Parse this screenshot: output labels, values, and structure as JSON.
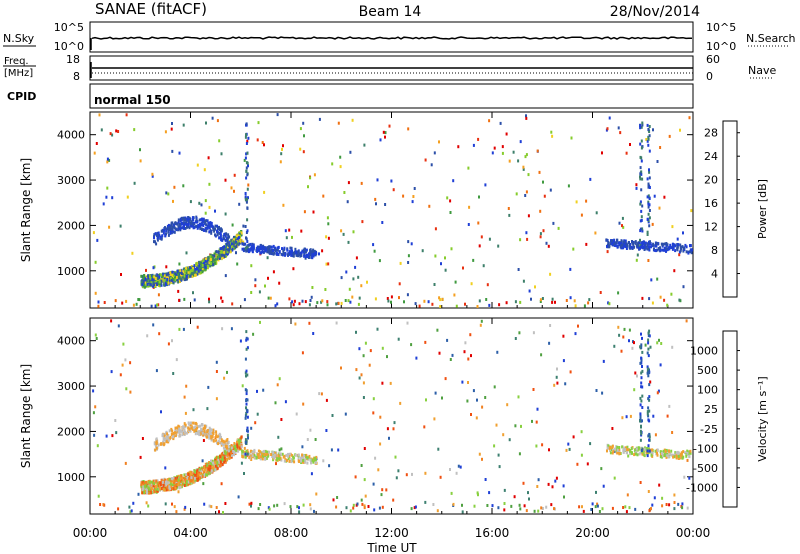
{
  "header": {
    "station": "SANAE (fitACF)",
    "beam": "Beam 14",
    "date": "28/Nov/2014"
  },
  "strip": {
    "nsky_label": "N.Sky",
    "nsky_ticks": [
      "10^5",
      "10^0"
    ],
    "nsearch_label": "N.Search",
    "nsearch_ticks": [
      "10^5",
      "10^0"
    ],
    "freq_label_1": "Freq.",
    "freq_label_2": "[MHz]",
    "freq_ticks": [
      "18",
      "8"
    ],
    "nave_label": "Nave",
    "nave_ticks": [
      "60",
      "0"
    ],
    "cpid_label": "CPID",
    "cpid_value": "normal 150"
  },
  "colors": {
    "power_scale": [
      "#1f3fd6",
      "#2c4fa8",
      "#3d7f6a",
      "#3f9a3f",
      "#86cc2c",
      "#f0d020",
      "#f5a020",
      "#f07010",
      "#e83010",
      "#e00000"
    ],
    "velocity_scale": [
      "#1f3fd6",
      "#2c5fa8",
      "#3d8070",
      "#4fa040",
      "#88d040",
      "#c0c0c0",
      "#f0a030",
      "#f08020",
      "#f05010",
      "#e00000"
    ]
  },
  "chart_data": [
    {
      "type": "heatmap",
      "name": "power",
      "xlabel": "",
      "ylabel": "Slant Range [km]",
      "x_ticks": [
        "00:00",
        "04:00",
        "08:00",
        "12:00",
        "16:00",
        "20:00",
        "00:00"
      ],
      "y_ticks": [
        "1000",
        "2000",
        "3000",
        "4000"
      ],
      "x_range_hours": [
        0,
        24
      ],
      "y_range_km": [
        180,
        4500
      ],
      "colorbar_label": "Power [dB]",
      "colorbar_ticks": [
        "4",
        "8",
        "12",
        "16",
        "20",
        "24",
        "28"
      ],
      "colorbar_range": [
        0,
        30
      ],
      "features": [
        {
          "t_start": 2.0,
          "t_end": 6.0,
          "r_start": 800,
          "r_end": 1800,
          "level": "high"
        },
        {
          "t_start": 6.0,
          "t_end": 9.0,
          "r_start": 1300,
          "r_end": 1600,
          "level": "low"
        },
        {
          "t_start": 20.5,
          "t_end": 24.0,
          "r_start": 1400,
          "r_end": 1800,
          "level": "low"
        }
      ]
    },
    {
      "type": "heatmap",
      "name": "velocity",
      "xlabel": "Time UT",
      "ylabel": "Slant Range [km]",
      "x_ticks": [
        "00:00",
        "04:00",
        "08:00",
        "12:00",
        "16:00",
        "20:00",
        "00:00"
      ],
      "y_ticks": [
        "1000",
        "2000",
        "3000",
        "4000"
      ],
      "x_range_hours": [
        0,
        24
      ],
      "y_range_km": [
        180,
        4500
      ],
      "colorbar_label": "Velocity [m s⁻¹]",
      "colorbar_ticks": [
        "1000",
        "500",
        "100",
        "25",
        "-25",
        "-100",
        "-500",
        "-1000"
      ],
      "features": [
        {
          "t_start": 2.0,
          "t_end": 6.0,
          "r_start": 800,
          "r_end": 1800,
          "level": "negative"
        },
        {
          "t_start": 6.0,
          "t_end": 9.0,
          "r_start": 1300,
          "r_end": 1600,
          "level": "near-zero"
        },
        {
          "t_start": 20.5,
          "t_end": 24.0,
          "r_start": 1400,
          "r_end": 1800,
          "level": "near-zero"
        }
      ]
    }
  ]
}
